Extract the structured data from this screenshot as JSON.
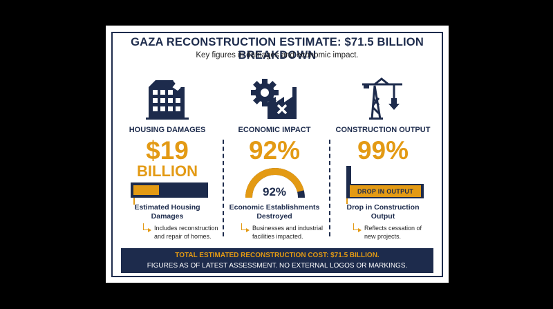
{
  "title": "GAZA RECONSTRUCTION ESTIMATE: $71.5 BILLION BREAKDOWN",
  "subtitle": "Key figures in damages and economic impact.",
  "colors": {
    "navy": "#1d2b4c",
    "accent": "#e39a14",
    "background": "#ffffff"
  },
  "housing": {
    "icon": "damaged-building-icon",
    "heading": "HOUSING DAMAGES",
    "value_line1": "$19",
    "value_line2": "BILLION",
    "bar_fill_fraction": 0.36,
    "label_line1": "Estimated Housing",
    "label_line2": "Damages",
    "note_line1": "Includes reconstruction",
    "note_line2": "and repair of homes."
  },
  "economic": {
    "icon": "gear-factory-icon",
    "heading": "ECONOMIC IMPACT",
    "value": "92%",
    "gauge_value": "92%",
    "gauge_fraction": 0.92,
    "label_line1": "Economic Establishments",
    "label_line2": "Destroyed",
    "note_line1": "Businesses and industrial",
    "note_line2": "facilities impacted."
  },
  "construction": {
    "icon": "crane-down-arrow-icon",
    "heading": "CONSTRUCTION OUTPUT",
    "value": "99%",
    "bar_label": "DROP IN OUTPUT",
    "bar_fill_fraction": 0.99,
    "label_line1": "Drop in Construction",
    "label_line2": "Output",
    "note_line1": "Reflects cessation of",
    "note_line2": "new projects."
  },
  "footer": {
    "line1": "TOTAL ESTIMATED RECONSTRUCTION COST: $71.5 BILLION.",
    "line2": "FIGURES AS OF LATEST ASSESSMENT. NO EXTERNAL LOGOS OR MARKINGS."
  }
}
